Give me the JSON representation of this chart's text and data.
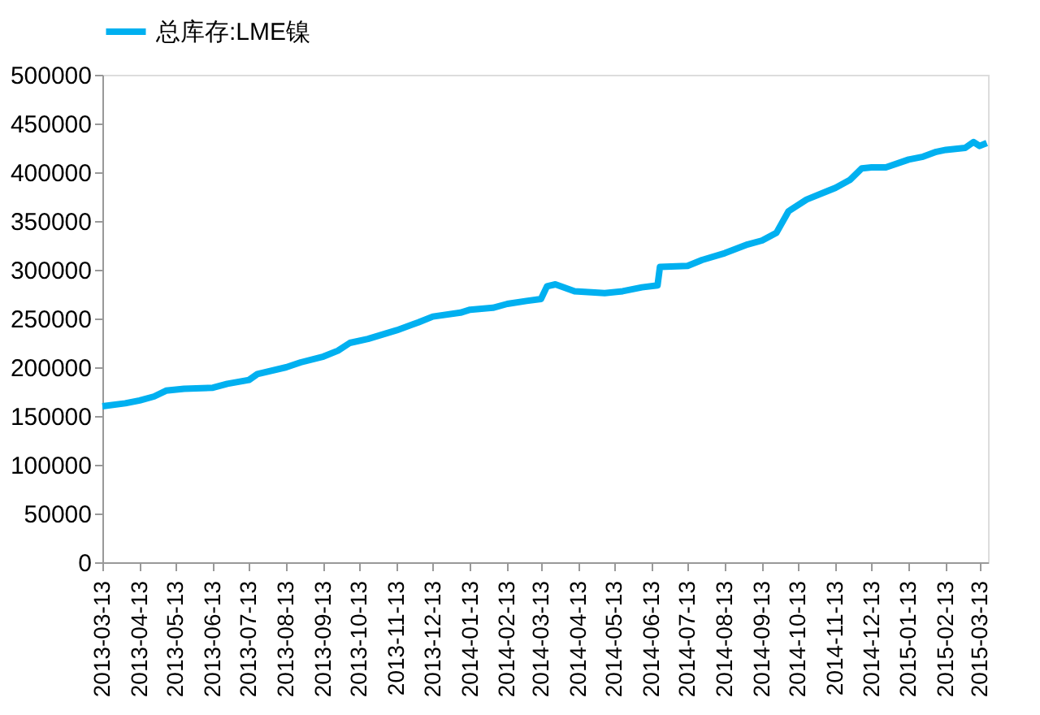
{
  "chart_data": {
    "type": "line",
    "legend": "top",
    "marker": "none",
    "line_style": "solid",
    "grid": false,
    "xlim": [
      "2013-03-13",
      "2015-03-20"
    ],
    "xticks": [
      "2013-03-13",
      "2013-04-13",
      "2013-05-13",
      "2013-06-13",
      "2013-07-13",
      "2013-08-13",
      "2013-09-13",
      "2013-10-13",
      "2013-11-13",
      "2013-12-13",
      "2014-01-13",
      "2014-02-13",
      "2014-03-13",
      "2014-04-13",
      "2014-05-13",
      "2014-06-13",
      "2014-07-13",
      "2014-08-13",
      "2014-09-13",
      "2014-10-13",
      "2014-11-13",
      "2014-12-13",
      "2015-01-13",
      "2015-02-13",
      "2015-03-13"
    ],
    "ylim": [
      0,
      500000
    ],
    "yticks": [
      0,
      50000,
      100000,
      150000,
      200000,
      250000,
      300000,
      350000,
      400000,
      450000,
      500000
    ],
    "x": [
      "2013-03-13",
      "2013-04-01",
      "2013-04-13",
      "2013-04-25",
      "2013-05-05",
      "2013-05-20",
      "2013-06-13",
      "2013-06-25",
      "2013-07-13",
      "2013-07-20",
      "2013-08-13",
      "2013-08-25",
      "2013-09-13",
      "2013-09-25",
      "2013-10-05",
      "2013-10-20",
      "2013-11-13",
      "2013-12-01",
      "2013-12-13",
      "2014-01-05",
      "2014-01-13",
      "2014-02-01",
      "2014-02-13",
      "2014-03-01",
      "2014-03-13",
      "2014-03-18",
      "2014-03-25",
      "2014-04-10",
      "2014-05-05",
      "2014-05-20",
      "2014-06-05",
      "2014-06-18",
      "2014-06-20",
      "2014-07-13",
      "2014-07-25",
      "2014-08-13",
      "2014-09-01",
      "2014-09-13",
      "2014-09-25",
      "2014-10-05",
      "2014-10-20",
      "2014-11-05",
      "2014-11-13",
      "2014-11-25",
      "2014-12-05",
      "2014-12-13",
      "2014-12-25",
      "2015-01-13",
      "2015-01-25",
      "2015-02-05",
      "2015-02-13",
      "2015-03-01",
      "2015-03-08",
      "2015-03-13",
      "2015-03-19"
    ],
    "series": [
      {
        "name": "总库存:LME镍",
        "color": "#00b0f0",
        "values": [
          160000,
          163000,
          166000,
          170000,
          176000,
          178000,
          179000,
          183000,
          187000,
          193000,
          200000,
          205000,
          211000,
          217000,
          225000,
          229000,
          238000,
          246000,
          252000,
          256000,
          259000,
          261000,
          265000,
          268000,
          270000,
          283000,
          285000,
          278000,
          276000,
          278000,
          282000,
          284000,
          303000,
          304000,
          310000,
          317000,
          326000,
          330000,
          338000,
          360000,
          372000,
          380000,
          384000,
          392000,
          404000,
          405000,
          405000,
          413000,
          416000,
          421000,
          423000,
          425000,
          431000,
          427000,
          430000
        ]
      }
    ]
  }
}
